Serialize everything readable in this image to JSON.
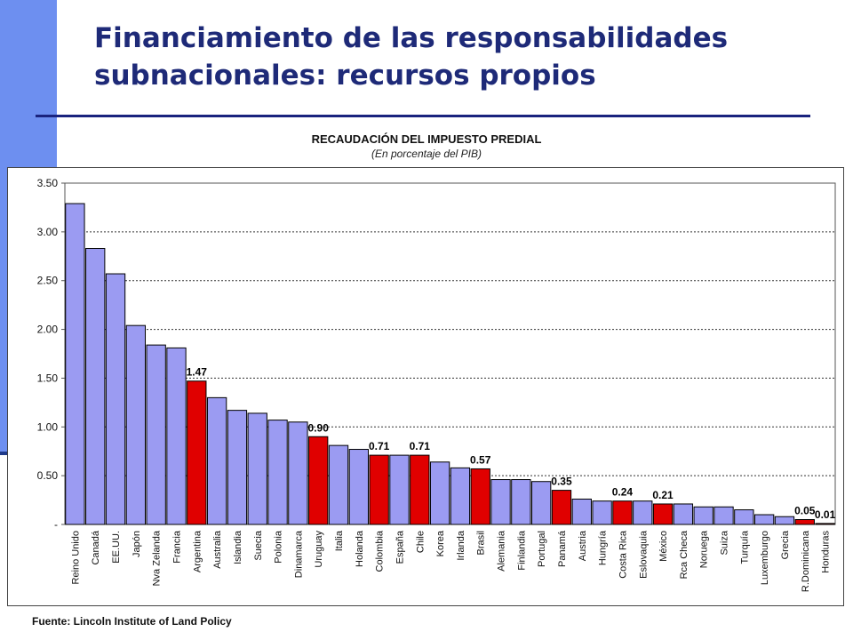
{
  "slide": {
    "title_line1": "Financiamiento de las responsabilidades",
    "title_line2": "subnacionales: recursos propios",
    "accent_color": "#6d8ff0",
    "title_color": "#1e2a78"
  },
  "chart": {
    "title": "RECAUDACIÓN DEL IMPUESTO PREDIAL",
    "subtitle": "(En porcentaje del PIB)",
    "source": "Fuente: Lincoln Institute of Land Policy"
  },
  "chart_data": {
    "type": "bar",
    "title": "RECAUDACIÓN DEL IMPUESTO PREDIAL",
    "subtitle": "(En porcentaje del PIB)",
    "xlabel": "",
    "ylabel": "",
    "ylim": [
      0,
      3.5
    ],
    "yticks": [
      "-",
      "0.50",
      "1.00",
      "1.50",
      "2.00",
      "2.50",
      "3.00",
      "3.50"
    ],
    "grid": true,
    "legend": "none",
    "colors": {
      "default": "#9b9bf2",
      "highlight": "#e00000"
    },
    "categories": [
      "Reino Unido",
      "Canadá",
      "EE.UU.",
      "Japón",
      "Nva Zelanda",
      "Francia",
      "Argentina",
      "Australia",
      "Islandia",
      "Suecia",
      "Polonia",
      "Dinamarca",
      "Uruguay",
      "Italia",
      "Holanda",
      "Colombia",
      "España",
      "Chile",
      "Korea",
      "Irlanda",
      "Brasil",
      "Alemania",
      "Finlandia",
      "Portugal",
      "Panamá",
      "Austria",
      "Hungría",
      "Costa Rica",
      "Eslovaquia",
      "México",
      "Rca Checa",
      "Noruega",
      "Suiza",
      "Turquía",
      "Luxemburgo",
      "Grecia",
      "R.Dominicana",
      "Honduras"
    ],
    "values": [
      3.29,
      2.83,
      2.57,
      2.04,
      1.84,
      1.81,
      1.47,
      1.3,
      1.17,
      1.14,
      1.07,
      1.05,
      0.9,
      0.81,
      0.77,
      0.71,
      0.71,
      0.71,
      0.64,
      0.58,
      0.57,
      0.46,
      0.46,
      0.44,
      0.35,
      0.26,
      0.24,
      0.24,
      0.24,
      0.21,
      0.21,
      0.18,
      0.18,
      0.15,
      0.1,
      0.08,
      0.05,
      0.01
    ],
    "highlighted": [
      false,
      false,
      false,
      false,
      false,
      false,
      true,
      false,
      false,
      false,
      false,
      false,
      true,
      false,
      false,
      true,
      false,
      true,
      false,
      false,
      true,
      false,
      false,
      false,
      true,
      false,
      false,
      true,
      false,
      true,
      false,
      false,
      false,
      false,
      false,
      false,
      true,
      true
    ],
    "data_labels": [
      "",
      "",
      "",
      "",
      "",
      "",
      "1.47",
      "",
      "",
      "",
      "",
      "",
      "0.90",
      "",
      "",
      "0.71",
      "",
      "0.71",
      "",
      "",
      "0.57",
      "",
      "",
      "",
      "0.35",
      "",
      "",
      "0.24",
      "",
      "0.21",
      "",
      "",
      "",
      "",
      "",
      "",
      "0.05",
      "0.01"
    ]
  }
}
